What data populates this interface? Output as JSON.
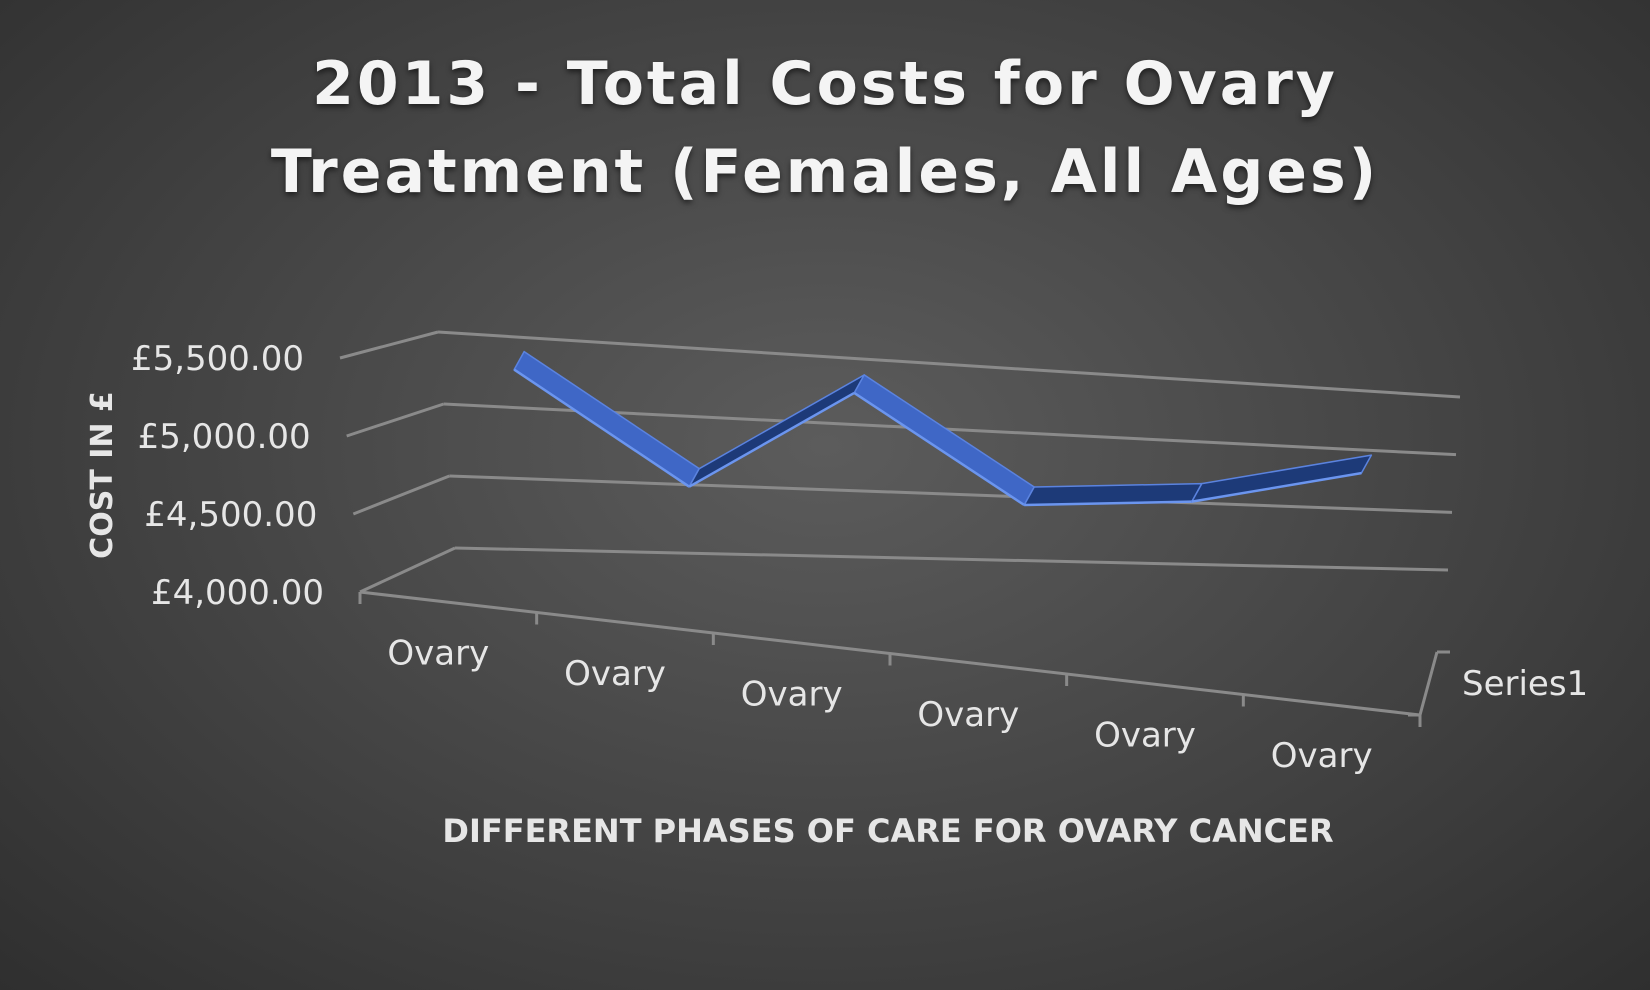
{
  "chart_data": {
    "type": "line",
    "style": "3d-ribbon",
    "title_lines": [
      "2013 - Total Costs for Ovary",
      "Treatment (Females, All Ages)"
    ],
    "xlabel": "DIFFERENT PHASES OF CARE FOR OVARY CANCER",
    "ylabel": "COST IN £",
    "categories": [
      "Ovary",
      "Ovary",
      "Ovary",
      "Ovary",
      "Ovary",
      "Ovary"
    ],
    "y_tick_labels": [
      "£4,000.00",
      "£4,500.00",
      "£5,000.00",
      "£5,500.00"
    ],
    "y_ticks": [
      4000,
      4500,
      5000,
      5500
    ],
    "ylim": [
      4000,
      5500
    ],
    "series": [
      {
        "name": "Series1",
        "values": [
          5400,
          4620,
          5380,
          4580,
          4660,
          4960
        ]
      }
    ],
    "colors": {
      "ribbon_top": "#3f67c6",
      "ribbon_front": "#2a4f9f",
      "ribbon_dark": "#1d3a78",
      "gridline": "#8a8a8a",
      "text": "#e6e6e6"
    },
    "grid": true,
    "legend": "none"
  }
}
